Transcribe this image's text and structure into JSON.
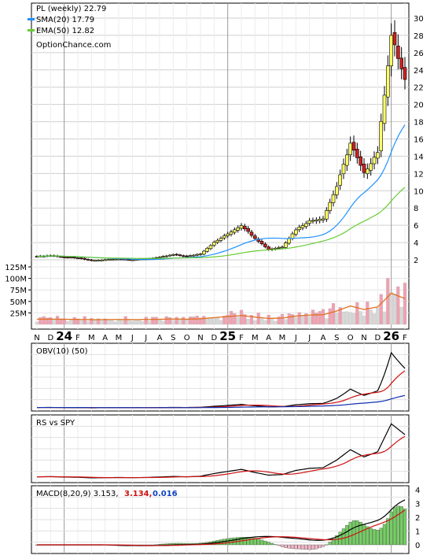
{
  "main_chart": {
    "title": "PL (weekly) 22.79",
    "legend": [
      {
        "label": "SMA(20) 17.79",
        "color": "#1e90ff"
      },
      {
        "label": "EMA(50) 12.82",
        "color": "#66cc33"
      }
    ],
    "watermark": "OptionChance.com",
    "price_ticks": [
      "2",
      "4",
      "6",
      "8",
      "10",
      "12",
      "14",
      "16",
      "18",
      "20",
      "22",
      "24",
      "26",
      "28",
      "30"
    ],
    "volume_ticks": [
      "25M",
      "50M",
      "75M",
      "100M",
      "125M"
    ],
    "x_labels": [
      "N",
      "D",
      "24",
      "F",
      "M",
      "A",
      "M",
      "J",
      "J",
      "A",
      "S",
      "O",
      "N",
      "D",
      "25",
      "F",
      "M",
      "A",
      "M",
      "J",
      "J",
      "A",
      "S",
      "O",
      "N",
      "D",
      "26",
      "F"
    ]
  },
  "obv_panel": {
    "title": "OBV(10) (50)"
  },
  "rs_panel": {
    "title": "RS vs SPY"
  },
  "macd_panel": {
    "title": "MACD(8,20,9) 3.153,",
    "signal_value": "3.134,",
    "hist_value": "0.016",
    "ticks": [
      "0",
      "1",
      "2",
      "3",
      "4"
    ]
  },
  "colors": {
    "up_candle": "#ffff66",
    "down_candle": "#cc2222",
    "sma": "#1e90ff",
    "ema": "#66cc33",
    "vol_up": "#f0a0b0",
    "vol_down": "#d8d8d8",
    "vol_ma": "#e07020",
    "hist_pos": "#77cc66",
    "hist_neg": "#f0b8c8"
  },
  "chart_data": {
    "type": "candlestick",
    "interval": "weekly",
    "x": [
      "2023-11",
      "2023-12",
      "2024-01",
      "2024-02",
      "2024-03",
      "2024-04",
      "2024-05",
      "2024-06",
      "2024-07",
      "2024-08",
      "2024-09",
      "2024-10",
      "2024-11",
      "2024-12",
      "2025-01",
      "2025-02",
      "2025-03",
      "2025-04",
      "2025-05",
      "2025-06",
      "2025-07",
      "2025-08",
      "2025-09",
      "2025-10",
      "2025-11",
      "2025-12",
      "2026-01",
      "2026-02"
    ],
    "close": [
      2.4,
      2.5,
      2.3,
      2.2,
      1.9,
      2.0,
      2.1,
      2.0,
      2.1,
      2.3,
      2.6,
      2.4,
      2.7,
      4.0,
      5.0,
      6.0,
      4.5,
      3.2,
      3.5,
      5.5,
      6.5,
      6.8,
      10.5,
      15.5,
      12.0,
      14.5,
      28.0,
      22.79
    ],
    "sma20_last": 17.79,
    "ema50_last": 12.82,
    "ylim": [
      1.5,
      31
    ],
    "volume_ylim_M": [
      0,
      130
    ]
  }
}
